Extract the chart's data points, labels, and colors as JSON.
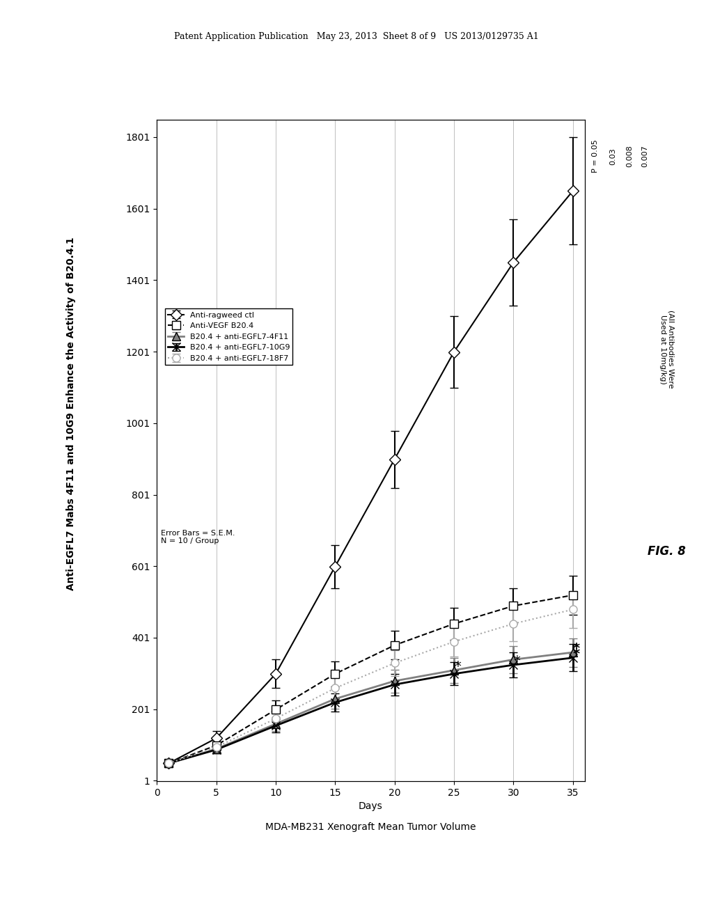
{
  "title": "Anti-EGFL7 Mabs 4F11 and 10G9 Enhance the Activity of B20.4.1",
  "xlabel": "MDA-MB231 Xenograft Mean Tumor Volume",
  "ylabel": "Days",
  "xlim": [
    1,
    1801
  ],
  "ylim": [
    0,
    35
  ],
  "xticks": [
    1,
    201,
    401,
    601,
    801,
    1001,
    1201,
    1401,
    1601,
    1801
  ],
  "yticks": [
    0,
    5,
    10,
    15,
    20,
    25,
    30,
    35
  ],
  "series": {
    "antiragweed": {
      "label": "Anti-ragweed ctl",
      "x": [
        1,
        5,
        10,
        15,
        20,
        25,
        30,
        35
      ],
      "y": [
        50,
        120,
        300,
        600,
        900,
        1200,
        1450,
        1650
      ],
      "yerr": [
        10,
        20,
        40,
        60,
        80,
        100,
        120,
        150
      ],
      "color": "black",
      "linestyle": "-",
      "marker": "D",
      "markersize": 8,
      "linewidth": 1.5
    },
    "b204": {
      "label": "Anti-VEGF B20.4",
      "x": [
        1,
        5,
        10,
        15,
        20,
        25,
        30,
        35
      ],
      "y": [
        50,
        100,
        200,
        300,
        380,
        440,
        490,
        520
      ],
      "yerr": [
        10,
        15,
        25,
        35,
        40,
        45,
        50,
        55
      ],
      "color": "black",
      "linestyle": "--",
      "marker": "s",
      "markersize": 8,
      "linewidth": 1.5
    },
    "b204_4f11": {
      "label": "B20.4 + anti-EGFL7-4F11",
      "x": [
        1,
        5,
        10,
        15,
        20,
        25,
        30,
        35
      ],
      "y": [
        50,
        90,
        160,
        230,
        280,
        310,
        340,
        360
      ],
      "yerr": [
        10,
        12,
        20,
        28,
        32,
        35,
        38,
        40
      ],
      "color": "gray",
      "linestyle": "-",
      "marker": "^",
      "markersize": 8,
      "linewidth": 2.0
    },
    "b204_10g9": {
      "label": "B20.4 + anti-EGFL7-10G9",
      "x": [
        1,
        5,
        10,
        15,
        20,
        25,
        30,
        35
      ],
      "y": [
        50,
        88,
        155,
        220,
        270,
        300,
        325,
        345
      ],
      "yerr": [
        10,
        11,
        18,
        25,
        30,
        32,
        35,
        38
      ],
      "color": "black",
      "linestyle": "-",
      "marker": "x",
      "markersize": 9,
      "linewidth": 2.0
    },
    "b204_18f7": {
      "label": "B20.4 + anti-EGFL7-18F7",
      "x": [
        1,
        5,
        10,
        15,
        20,
        25,
        30,
        35
      ],
      "y": [
        50,
        95,
        175,
        260,
        330,
        390,
        440,
        480
      ],
      "yerr": [
        10,
        14,
        22,
        30,
        36,
        42,
        48,
        52
      ],
      "color": "darkgray",
      "linestyle": ":",
      "marker": "o",
      "markersize": 8,
      "linewidth": 1.5
    }
  },
  "p_values": {
    "p_05": {
      "y": 25,
      "label": "P = 0.05"
    },
    "p_03": {
      "y": 27,
      "label": "0.03"
    },
    "p_008": {
      "y": 30,
      "label": "0.008"
    },
    "p_007": {
      "y": 35,
      "label": "0.007"
    }
  },
  "annotation_note": "(All Antibodies Were\nUsed at 10mg/kg)",
  "fig_label": "FIG. 8",
  "header_text": "Patent Application Publication   May 23, 2013  Sheet 8 of 9   US 2013/0129735 A1",
  "arrow_days": [
    5,
    10,
    10,
    15,
    15,
    20,
    20
  ],
  "background_color": "#ffffff"
}
